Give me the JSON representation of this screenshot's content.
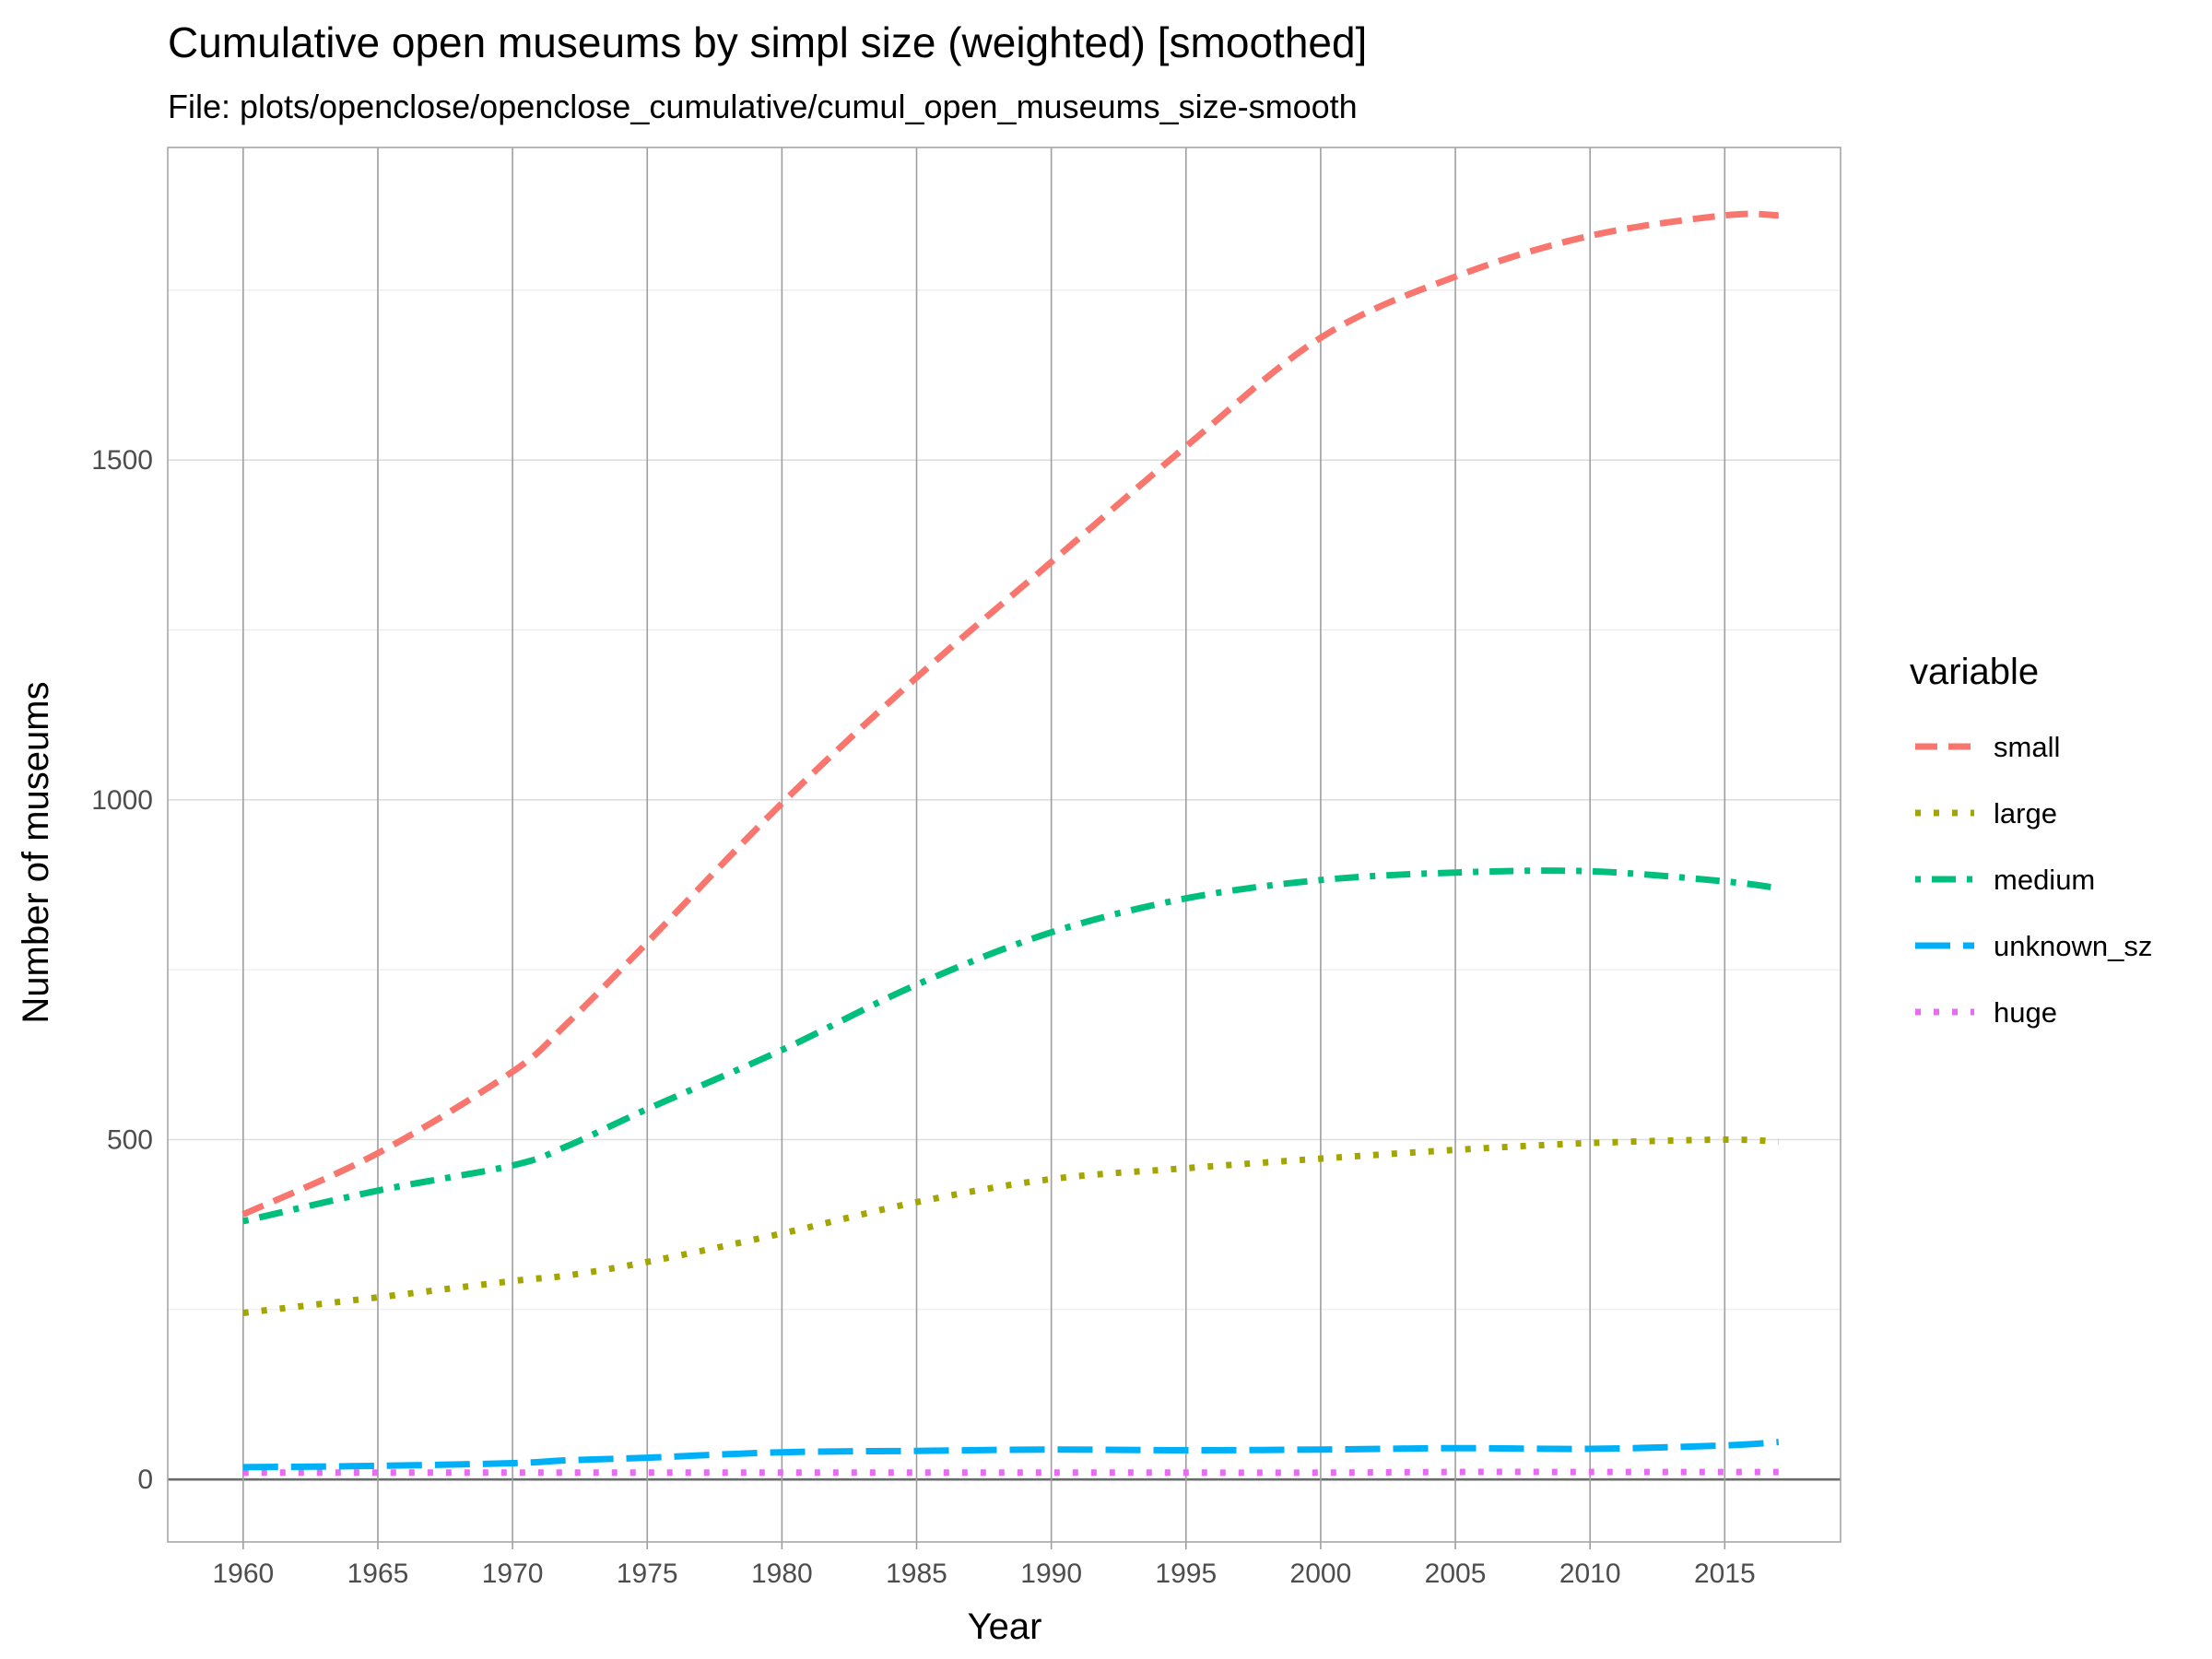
{
  "chart_data": {
    "type": "line",
    "title": "Cumulative open museums by simpl size (weighted) [smoothed]",
    "subtitle": "File: plots/openclose/openclose_cumulative/cumul_open_museums_size-smooth",
    "xlabel": "Year",
    "ylabel": "Number of museums",
    "xlim": [
      1957.2,
      2019.3
    ],
    "ylim": [
      -92,
      1960
    ],
    "x_ticks": [
      1960,
      1965,
      1970,
      1975,
      1980,
      1985,
      1990,
      1995,
      2000,
      2005,
      2010,
      2015
    ],
    "y_ticks": [
      0,
      500,
      1000,
      1500
    ],
    "grid": true,
    "legend": {
      "title": "variable",
      "position": "right"
    },
    "x": [
      1960,
      1965,
      1970,
      1972,
      1975,
      1980,
      1985,
      1990,
      1995,
      2000,
      2005,
      2010,
      2015,
      2017
    ],
    "series": [
      {
        "name": "small",
        "color": "#F8766D",
        "dash": "dashed",
        "values": [
          390,
          480,
          600,
          670,
          790,
          995,
          1180,
          1350,
          1520,
          1680,
          1770,
          1830,
          1860,
          1860
        ]
      },
      {
        "name": "large",
        "color": "#A3A500",
        "dash": "dotted",
        "values": [
          245,
          268,
          292,
          300,
          320,
          362,
          408,
          442,
          458,
          472,
          485,
          495,
          500,
          497
        ]
      },
      {
        "name": "medium",
        "color": "#00BF7D",
        "dash": "dotdash",
        "values": [
          380,
          425,
          462,
          490,
          545,
          632,
          728,
          805,
          855,
          882,
          893,
          895,
          880,
          870
        ]
      },
      {
        "name": "unknown_sz",
        "color": "#00B0F6",
        "dash": "longdash",
        "values": [
          18,
          20,
          24,
          28,
          32,
          40,
          42,
          44,
          43,
          44,
          46,
          45,
          50,
          55
        ]
      },
      {
        "name": "huge",
        "color": "#E76BF3",
        "dash": "dotted",
        "values": [
          10,
          10,
          10,
          10,
          10,
          10,
          10,
          10,
          10,
          10,
          11,
          11,
          11,
          11
        ]
      }
    ]
  }
}
